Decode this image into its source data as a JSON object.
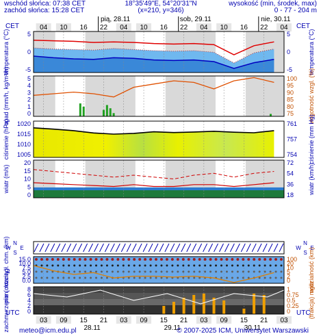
{
  "header": {
    "sunrise": "wschód słońca: 07:38 CET",
    "sunset": "zachód słońca: 15:28 CET",
    "coords": "18°35'49\"E, 54°20'31\"N",
    "grid": "(x=210, y=346)",
    "height_label": "wysokość (min, środek, max)",
    "height_value": "0 - 77 - 204 m"
  },
  "timezones": {
    "top_left": "CET",
    "top_right": "CET",
    "bottom_left": "UTC",
    "bottom_right": "UTC"
  },
  "top_hours": [
    "04",
    "10",
    "16",
    "22",
    "04",
    "10",
    "16",
    "22",
    "04",
    "10",
    "16",
    "22",
    "04"
  ],
  "day_labels_top": [
    "pią, 28.11",
    "sob, 29.11",
    "nie, 30.11"
  ],
  "bottom_hours": [
    "03",
    "09",
    "15",
    "21",
    "03",
    "09",
    "15",
    "21",
    "03",
    "09",
    "15",
    "21",
    "03"
  ],
  "day_labels_bottom": [
    "28.11",
    "29.11",
    "30.11"
  ],
  "axis_titles": {
    "temp_left": "temperatura (°C)",
    "temp_right": "temperatura (°C)",
    "precip_left": "opad (mm/h, kg/m²/h)",
    "humidity_right": "wilgotność wzgl. (%)",
    "pressure_left": "ciśnienie (hPa)",
    "pressure_right": "ciśnienie (mm Hg)",
    "wind_left": "wiatr (m/s)",
    "wind_right": "wiatr (km/h)",
    "cloud_left": "pion. rozciągł. chm. (km)",
    "visibility_right": "widzialność (km)",
    "cover_left": "zachmurzenie (oktanty)",
    "fog_right": "(frakcja) mgła"
  },
  "ticks": {
    "temp_left": [
      "5",
      "0",
      "-5"
    ],
    "temp_right": [
      "5",
      "0",
      "-5"
    ],
    "precip_left": [
      "5",
      "4",
      "3",
      "2",
      "1",
      "0"
    ],
    "humidity_right": [
      "100",
      "95",
      "90",
      "85",
      "80",
      "75"
    ],
    "pressure_left": [
      "1020",
      "1015",
      "1010",
      "1005"
    ],
    "pressure_right": [
      "761",
      "757",
      "754"
    ],
    "wind_left": [
      "20",
      "15",
      "10",
      "5",
      "0"
    ],
    "wind_right": [
      "72",
      "54",
      "36",
      "18"
    ],
    "cloud_left": [
      "15.0",
      "10.0",
      "7.5",
      "5.0",
      "2.5",
      "0.0"
    ],
    "visibility_right": [
      "100",
      "20",
      "10",
      "5",
      "2",
      "0"
    ],
    "cover_left": [
      "8",
      "6",
      "4",
      "2",
      "0"
    ],
    "fog_right": [
      "1",
      "0.75",
      "0.5",
      "0.25",
      "0"
    ]
  },
  "footer": {
    "email": "meteo@icm.edu.pl",
    "copyright": "© 2007-2025 ICM, Uniwersytet Warszawski"
  },
  "colors": {
    "axis": "#0000b0",
    "temp_max": "#e00000",
    "temp_min": "#0000c0",
    "humidity": "#e05000",
    "pressure_fill": "#e8e800",
    "wind": "#d00000",
    "fog": "#f0a000"
  },
  "chart_data": [
    {
      "type": "line",
      "name": "temperatura",
      "x_hours": [
        0,
        6,
        12,
        18,
        24,
        30,
        36,
        42,
        48,
        54,
        60,
        66,
        72
      ],
      "series": [
        {
          "values": [
            4.8,
            4.6,
            4.4,
            4.0,
            4.2,
            4.0,
            3.6,
            3.4,
            3.6,
            3.2,
            -0.5,
            2.8,
            4.2
          ]
        },
        {
          "values": [
            2.0,
            1.6,
            1.4,
            1.2,
            1.8,
            1.4,
            1.0,
            0.8,
            1.0,
            0.4,
            -3.5,
            0.2,
            1.6
          ]
        },
        {
          "values": [
            -1.0,
            -1.6,
            -2.0,
            -2.2,
            -1.6,
            -1.8,
            -2.4,
            -2.6,
            -2.4,
            -3.0,
            -5.5,
            -3.4,
            -2.2
          ]
        }
      ],
      "ylim": [
        -7,
        8
      ]
    },
    {
      "type": "line",
      "name": "wilgotność",
      "x_hours": [
        0,
        6,
        12,
        18,
        24,
        30,
        36,
        42,
        48,
        54,
        60,
        66,
        72
      ],
      "values": [
        88,
        89,
        90,
        89,
        87,
        93,
        95,
        97,
        96,
        92,
        97,
        99,
        96
      ],
      "ylim": [
        75,
        100
      ]
    },
    {
      "type": "bar",
      "name": "opad",
      "x_hours": [
        14,
        15,
        21,
        22,
        23,
        24,
        71
      ],
      "values": [
        1.6,
        1.2,
        0.8,
        1.4,
        1.0,
        0.4,
        0.3
      ],
      "ylim": [
        0,
        5
      ]
    },
    {
      "type": "line",
      "name": "ciśnienie",
      "x_hours": [
        0,
        6,
        12,
        18,
        24,
        30,
        36,
        42,
        48,
        54,
        60,
        66,
        72
      ],
      "values": [
        1017.5,
        1016.8,
        1016.0,
        1014.8,
        1014.2,
        1014.6,
        1015.4,
        1015.0,
        1015.3,
        1015.7,
        1015.2,
        1014.9,
        1016.0
      ],
      "ylim": [
        1002,
        1021
      ]
    },
    {
      "type": "line",
      "name": "wiatr",
      "x_hours": [
        0,
        6,
        12,
        18,
        24,
        30,
        36,
        42,
        48,
        54,
        60,
        66,
        72
      ],
      "series": [
        {
          "values": [
            15,
            14,
            13,
            12,
            11,
            12,
            11,
            10,
            12,
            13,
            11,
            13,
            14
          ]
        },
        {
          "values": [
            8,
            7.5,
            7,
            6.5,
            6,
            7,
            6,
            6,
            7,
            7,
            6,
            7,
            8
          ]
        }
      ],
      "ylim": [
        0,
        20
      ]
    },
    {
      "type": "line",
      "name": "widzialność",
      "x_hours": [
        0,
        6,
        12,
        18,
        24,
        30,
        36,
        42,
        48,
        54,
        60,
        66,
        72
      ],
      "values": [
        10,
        7,
        5,
        6,
        3,
        4,
        4,
        3.5,
        4,
        3,
        0.5,
        3,
        6
      ],
      "ylim": [
        0,
        15
      ]
    },
    {
      "type": "bar",
      "name": "mgła",
      "x_hours": [
        39,
        42,
        45,
        48,
        51,
        54,
        57,
        63,
        66,
        69
      ],
      "values": [
        0.3,
        0.45,
        0.6,
        0.7,
        0.75,
        0.6,
        0.5,
        0.2,
        0.75,
        0.7
      ],
      "ylim": [
        0,
        1
      ]
    }
  ]
}
